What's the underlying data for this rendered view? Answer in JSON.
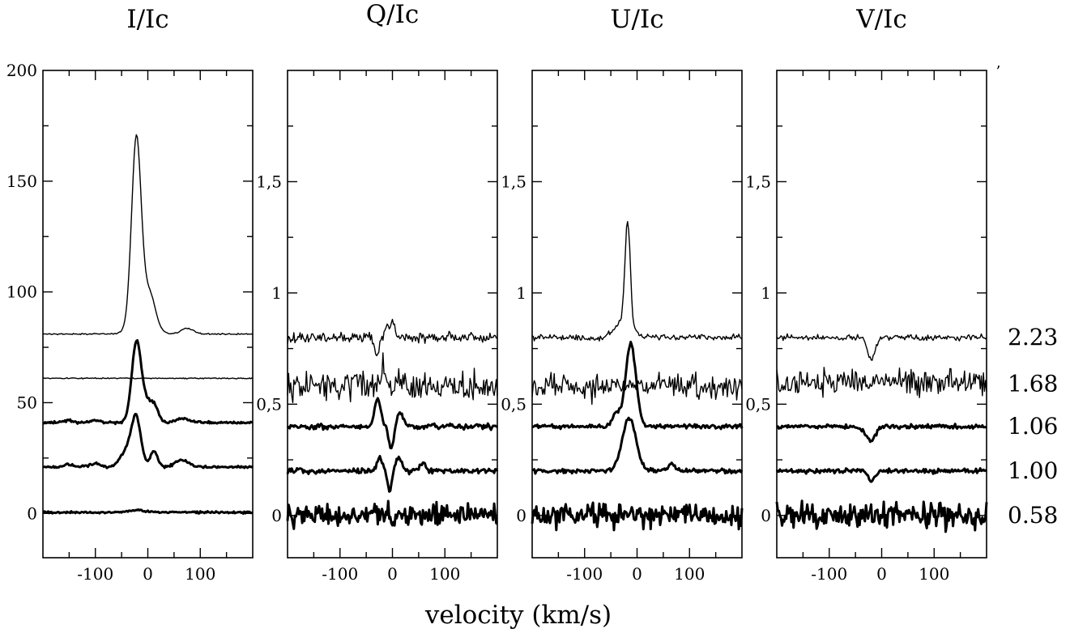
{
  "chart_data": [
    {
      "type": "line",
      "title": "I/Ic",
      "xlabel": "",
      "ylabel": "",
      "xlim": [
        -200,
        200
      ],
      "ylim": [
        -20,
        200
      ],
      "xticks": [
        -100,
        0,
        100
      ],
      "yticks": [
        0,
        50,
        100,
        150,
        200
      ],
      "yticklabels": [
        "0",
        "50",
        "100",
        "150",
        "200"
      ],
      "series": [
        {
          "offset": 81,
          "width": 1.4,
          "noise": 0.15,
          "features": [
            {
              "center": -22,
              "amp": 80,
              "sigma": 9
            },
            {
              "center": -10,
              "amp": 12,
              "sigma": 18
            },
            {
              "center": 5,
              "amp": 10,
              "sigma": 10
            },
            {
              "center": 75,
              "amp": 2.5,
              "sigma": 12
            }
          ]
        },
        {
          "offset": 61,
          "width": 1.4,
          "noise": 0.15,
          "features": []
        },
        {
          "offset": 41,
          "width": 3.0,
          "noise": 0.35,
          "features": [
            {
              "center": -22,
              "amp": 34,
              "sigma": 9
            },
            {
              "center": -5,
              "amp": 8,
              "sigma": 12
            },
            {
              "center": 12,
              "amp": 6,
              "sigma": 8
            },
            {
              "center": 65,
              "amp": 2,
              "sigma": 12
            },
            {
              "center": -100,
              "amp": 1.2,
              "sigma": 10
            },
            {
              "center": -150,
              "amp": 0.8,
              "sigma": 10
            }
          ]
        },
        {
          "offset": 21,
          "width": 3.0,
          "noise": 0.35,
          "features": [
            {
              "center": -22,
              "amp": 21,
              "sigma": 9
            },
            {
              "center": -40,
              "amp": 7,
              "sigma": 12
            },
            {
              "center": 12,
              "amp": 7,
              "sigma": 7
            },
            {
              "center": 65,
              "amp": 3,
              "sigma": 12
            },
            {
              "center": -100,
              "amp": 1.5,
              "sigma": 10
            },
            {
              "center": -150,
              "amp": 1.2,
              "sigma": 10
            }
          ]
        },
        {
          "offset": 0.5,
          "width": 3.0,
          "noise": 0.3,
          "features": [
            {
              "center": -20,
              "amp": 1,
              "sigma": 15
            }
          ]
        }
      ]
    },
    {
      "type": "line",
      "title": "Q/Ic",
      "xlabel": "",
      "ylabel": "",
      "xlim": [
        -200,
        200
      ],
      "ylim": [
        -0.19,
        2.0
      ],
      "xticks": [
        -100,
        0,
        100
      ],
      "yticks": [
        0,
        0.5,
        1,
        1.5
      ],
      "yticklabels": [
        "0",
        "0,5",
        "1",
        "1,5"
      ],
      "series": [
        {
          "offset": 0.8,
          "width": 1.4,
          "noise": 0.013,
          "features": [
            {
              "center": -30,
              "amp": -0.08,
              "sigma": 5
            },
            {
              "center": -10,
              "amp": 0.06,
              "sigma": 4
            },
            {
              "center": 2,
              "amp": 0.07,
              "sigma": 4
            }
          ]
        },
        {
          "offset": 0.58,
          "width": 1.4,
          "noise": 0.04,
          "features": [
            {
              "center": -18,
              "amp": 0.12,
              "sigma": 3
            }
          ]
        },
        {
          "offset": 0.4,
          "width": 3.0,
          "noise": 0.007,
          "features": [
            {
              "center": -28,
              "amp": 0.12,
              "sigma": 6
            },
            {
              "center": -2,
              "amp": -0.1,
              "sigma": 5
            },
            {
              "center": 14,
              "amp": 0.07,
              "sigma": 6
            }
          ]
        },
        {
          "offset": 0.2,
          "width": 3.0,
          "noise": 0.007,
          "features": [
            {
              "center": -25,
              "amp": 0.06,
              "sigma": 5
            },
            {
              "center": -5,
              "amp": -0.09,
              "sigma": 4
            },
            {
              "center": 12,
              "amp": 0.06,
              "sigma": 6
            },
            {
              "center": 58,
              "amp": 0.04,
              "sigma": 5
            }
          ]
        },
        {
          "offset": 0.0,
          "width": 3.0,
          "noise": 0.03,
          "features": []
        }
      ]
    },
    {
      "type": "line",
      "title": "U/Ic",
      "xlabel": "",
      "ylabel": "",
      "xlim": [
        -200,
        200
      ],
      "ylim": [
        -0.19,
        2.0
      ],
      "xticks": [
        -100,
        0,
        100
      ],
      "yticks": [
        0,
        0.5,
        1,
        1.5
      ],
      "yticklabels": [
        "0",
        "0,5",
        "1",
        "1,5"
      ],
      "series": [
        {
          "offset": 0.8,
          "width": 1.4,
          "noise": 0.008,
          "features": [
            {
              "center": -18,
              "amp": 0.45,
              "sigma": 5
            },
            {
              "center": -25,
              "amp": 0.08,
              "sigma": 16
            }
          ]
        },
        {
          "offset": 0.58,
          "width": 1.4,
          "noise": 0.035,
          "features": []
        },
        {
          "offset": 0.4,
          "width": 3.0,
          "noise": 0.006,
          "features": [
            {
              "center": -12,
              "amp": 0.37,
              "sigma": 10
            },
            {
              "center": -40,
              "amp": 0.06,
              "sigma": 7
            }
          ]
        },
        {
          "offset": 0.2,
          "width": 3.0,
          "noise": 0.006,
          "features": [
            {
              "center": -15,
              "amp": 0.24,
              "sigma": 13
            },
            {
              "center": 65,
              "amp": 0.03,
              "sigma": 6
            }
          ]
        },
        {
          "offset": 0.0,
          "width": 3.0,
          "noise": 0.032,
          "features": []
        }
      ]
    },
    {
      "type": "line",
      "title": "V/Ic",
      "xlabel": "",
      "ylabel": "",
      "xlim": [
        -200,
        200
      ],
      "ylim": [
        -0.19,
        2.0
      ],
      "xticks": [
        -100,
        0,
        100
      ],
      "yticks": [
        0,
        0.5,
        1,
        1.5
      ],
      "yticklabels": [
        "0",
        "0,5",
        "1",
        "1,5"
      ],
      "series": [
        {
          "offset": 0.8,
          "width": 1.4,
          "noise": 0.008,
          "features": [
            {
              "center": -20,
              "amp": -0.1,
              "sigma": 7
            }
          ]
        },
        {
          "offset": 0.6,
          "width": 1.4,
          "noise": 0.035,
          "features": []
        },
        {
          "offset": 0.4,
          "width": 3.0,
          "noise": 0.006,
          "features": [
            {
              "center": -22,
              "amp": -0.06,
              "sigma": 10
            }
          ]
        },
        {
          "offset": 0.2,
          "width": 3.0,
          "noise": 0.006,
          "features": [
            {
              "center": -20,
              "amp": -0.05,
              "sigma": 6
            }
          ]
        },
        {
          "offset": 0.0,
          "width": 3.0,
          "noise": 0.035,
          "features": []
        }
      ]
    }
  ],
  "shared_xlabel": "velocity (km/s)",
  "phase_labels": [
    "2.23",
    "1.68",
    "1.06",
    "1.00",
    "0.58"
  ],
  "phase_label_values": [
    0.8,
    0.59,
    0.4,
    0.2,
    0.0
  ],
  "edge_mark": "ʼ",
  "line_color": "#000000"
}
